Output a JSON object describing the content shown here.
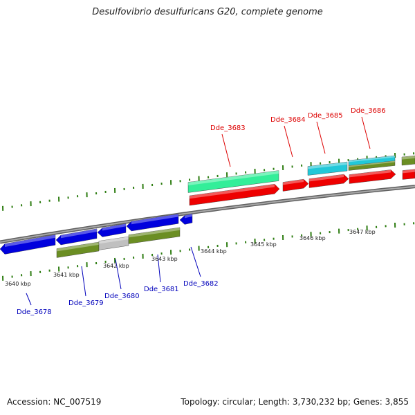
{
  "title": "Desulfovibrio desulfuricans G20, complete genome",
  "footer": {
    "accession": "Accession: NC_007519",
    "summary": "Topology: circular; Length: 3,730,232 bp; Genes: 3,855"
  },
  "colors": {
    "backbone": "#808080",
    "tick": "#2e7d12",
    "forward_cds": "#ee0000",
    "reverse_cds": "#0000dd",
    "rna_gene": "#33ee99",
    "cyan_feature": "#22c8d8",
    "olive_feature": "#6b8e23",
    "grey_feature": "#c0c0c0",
    "forward_label": "#dd0000",
    "reverse_label": "#0000bb"
  },
  "scale": {
    "unit": "kbp",
    "labels": [
      "3640 kbp",
      "3641 kbp",
      "3642 kbp",
      "3643 kbp",
      "3644 kbp",
      "3645 kbp",
      "3646 kbp",
      "3647 kbp"
    ]
  },
  "genes": {
    "forward": [
      "Dde_3683",
      "Dde_3684",
      "Dde_3685",
      "Dde_3686"
    ],
    "reverse": [
      "Dde_3678",
      "Dde_3679",
      "Dde_3680",
      "Dde_3681",
      "Dde_3682"
    ]
  }
}
